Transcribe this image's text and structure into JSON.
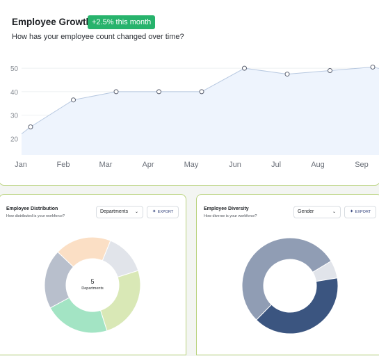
{
  "growth": {
    "title": "Employee Growth",
    "badge": "+2.5% this month",
    "subtitle": "How has your employee count changed over time?",
    "badge_color": "#27b36c"
  },
  "chart_data": [
    {
      "type": "area",
      "x": [
        "Jan",
        "Feb",
        "Mar",
        "Apr",
        "May",
        "Jun",
        "Jul",
        "Aug",
        "Sep"
      ],
      "series": [
        {
          "values": [
            25,
            36.5,
            40,
            40,
            40,
            50,
            47.5,
            49,
            50.5
          ]
        }
      ],
      "y_ticks": [
        20,
        30,
        40,
        50
      ],
      "ylim": [
        13,
        53
      ],
      "grid": true,
      "line_color": "#b7c8e0",
      "fill_color": "#eef4fd"
    },
    {
      "type": "pie",
      "center_value": "5",
      "center_label": "Departments",
      "slices": [
        {
          "value": 14,
          "color": "#e1e4ea"
        },
        {
          "value": 25,
          "color": "#d9e8b6"
        },
        {
          "value": 22,
          "color": "#a3e4c4"
        },
        {
          "value": 20,
          "color": "#b8bfcc"
        },
        {
          "value": 19,
          "color": "#fbdfc5"
        }
      ]
    },
    {
      "type": "pie",
      "slices": [
        {
          "value": 6,
          "color": "#e1e4ea"
        },
        {
          "value": 40,
          "color": "#3b5580"
        },
        {
          "value": 54,
          "color": "#909db4"
        }
      ]
    }
  ],
  "distribution": {
    "title": "Employee Distribution",
    "subtitle": "How distributed is your workforce?",
    "select_value": "Departments",
    "export_label": "EXPORT"
  },
  "diversity": {
    "title": "Employee Diversity",
    "subtitle": "How diverse is your workforce?",
    "select_value": "Gender",
    "export_label": "EXPORT"
  }
}
